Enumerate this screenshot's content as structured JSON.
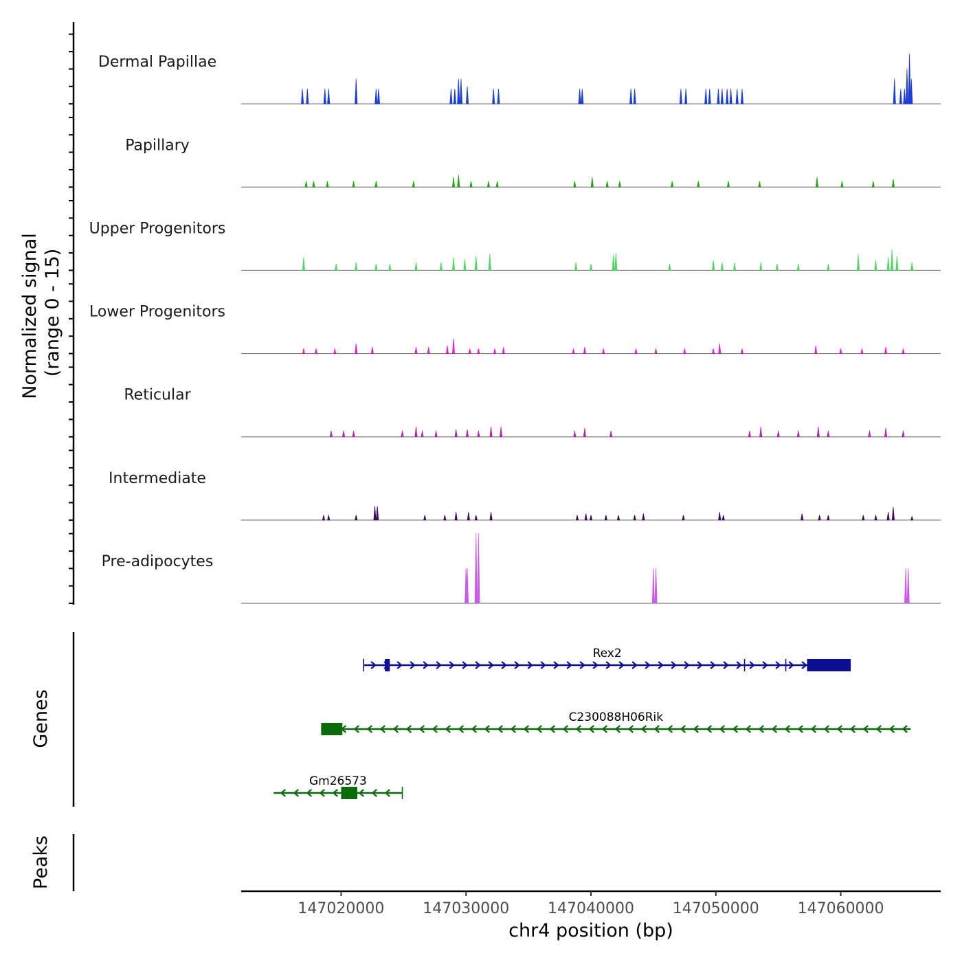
{
  "chart_data": {
    "type": "area",
    "title": "",
    "xlabel": "chr4 position (bp)",
    "ylabel_line1": "Normalized signal",
    "ylabel_line2": "(range 0 - 15)",
    "genes_label": "Genes",
    "peaks_label": "Peaks",
    "xlim": [
      147012000,
      147068000
    ],
    "ylim": [
      0,
      15
    ],
    "x_ticks": [
      147020000,
      147030000,
      147040000,
      147050000,
      147060000
    ],
    "x_tick_labels": [
      "147020000",
      "147030000",
      "147040000",
      "147050000",
      "147060000"
    ],
    "tracks": [
      {
        "name": "Dermal Papillae",
        "color": "#1d3fd6",
        "peaks": [
          [
            147016900,
            3
          ],
          [
            147017300,
            3
          ],
          [
            147018700,
            3
          ],
          [
            147019000,
            3
          ],
          [
            147021200,
            5
          ],
          [
            147022800,
            3
          ],
          [
            147023000,
            3
          ],
          [
            147028800,
            3
          ],
          [
            147029100,
            3
          ],
          [
            147029400,
            5
          ],
          [
            147029600,
            5
          ],
          [
            147030100,
            3.5
          ],
          [
            147032200,
            3
          ],
          [
            147032600,
            3
          ],
          [
            147039100,
            3
          ],
          [
            147039300,
            3
          ],
          [
            147043200,
            3
          ],
          [
            147043500,
            3
          ],
          [
            147047200,
            3
          ],
          [
            147047600,
            3
          ],
          [
            147049200,
            3
          ],
          [
            147049500,
            3
          ],
          [
            147050200,
            3
          ],
          [
            147050500,
            3
          ],
          [
            147050900,
            3
          ],
          [
            147051200,
            3
          ],
          [
            147051700,
            3
          ],
          [
            147052100,
            3
          ],
          [
            147064300,
            5
          ],
          [
            147064800,
            3
          ],
          [
            147065100,
            3
          ],
          [
            147065300,
            7
          ],
          [
            147065500,
            10
          ],
          [
            147065650,
            5
          ]
        ]
      },
      {
        "name": "Papillary",
        "color": "#22a80f",
        "peaks": [
          [
            147017200,
            1.2
          ],
          [
            147017800,
            1.2
          ],
          [
            147018900,
            1.2
          ],
          [
            147021000,
            1.2
          ],
          [
            147022800,
            1.2
          ],
          [
            147025800,
            1.2
          ],
          [
            147029000,
            2
          ],
          [
            147029400,
            2.4
          ],
          [
            147030400,
            1.2
          ],
          [
            147031800,
            1.2
          ],
          [
            147032500,
            1.2
          ],
          [
            147038700,
            1.2
          ],
          [
            147040100,
            2
          ],
          [
            147041300,
            1.2
          ],
          [
            147042300,
            1.2
          ],
          [
            147046500,
            1.2
          ],
          [
            147048600,
            1.2
          ],
          [
            147051000,
            1.2
          ],
          [
            147053500,
            1.2
          ],
          [
            147058100,
            2
          ],
          [
            147060100,
            1.2
          ],
          [
            147062600,
            1.2
          ],
          [
            147064200,
            1.6
          ]
        ]
      },
      {
        "name": "Upper Progenitors",
        "color": "#4dd95e",
        "peaks": [
          [
            147017000,
            2.6
          ],
          [
            147019600,
            1.3
          ],
          [
            147021200,
            1.6
          ],
          [
            147022800,
            1.3
          ],
          [
            147023900,
            1.3
          ],
          [
            147026000,
            1.6
          ],
          [
            147028000,
            1.6
          ],
          [
            147029000,
            2.6
          ],
          [
            147029900,
            2.2
          ],
          [
            147030800,
            2.8
          ],
          [
            147031900,
            3.3
          ],
          [
            147038800,
            1.6
          ],
          [
            147040000,
            1.3
          ],
          [
            147041800,
            3.2
          ],
          [
            147042000,
            3.5
          ],
          [
            147046300,
            1.3
          ],
          [
            147049800,
            2
          ],
          [
            147050500,
            1.6
          ],
          [
            147051500,
            1.6
          ],
          [
            147053600,
            1.6
          ],
          [
            147054900,
            1.3
          ],
          [
            147056600,
            1.3
          ],
          [
            147059000,
            1.3
          ],
          [
            147061400,
            3.2
          ],
          [
            147062800,
            2
          ],
          [
            147063800,
            2.6
          ],
          [
            147064100,
            4.2
          ],
          [
            147064500,
            2.8
          ],
          [
            147065700,
            1.6
          ]
        ]
      },
      {
        "name": "Lower Progenitors",
        "color": "#e51fd4",
        "peaks": [
          [
            147017000,
            1
          ],
          [
            147018000,
            1
          ],
          [
            147019500,
            1
          ],
          [
            147021200,
            2
          ],
          [
            147022500,
            1.3
          ],
          [
            147026000,
            1.3
          ],
          [
            147027000,
            1.3
          ],
          [
            147028500,
            1.6
          ],
          [
            147029000,
            3
          ],
          [
            147030300,
            1
          ],
          [
            147031000,
            1
          ],
          [
            147032300,
            1
          ],
          [
            147033000,
            1.3
          ],
          [
            147038600,
            1
          ],
          [
            147039500,
            1.3
          ],
          [
            147041000,
            1
          ],
          [
            147043600,
            1
          ],
          [
            147045200,
            1
          ],
          [
            147047500,
            1
          ],
          [
            147049800,
            1
          ],
          [
            147050300,
            2
          ],
          [
            147052100,
            1
          ],
          [
            147058000,
            1.6
          ],
          [
            147060000,
            1
          ],
          [
            147061700,
            1
          ],
          [
            147063600,
            1.3
          ],
          [
            147065000,
            1
          ]
        ]
      },
      {
        "name": "Reticular",
        "color": "#ae29b5",
        "peaks": [
          [
            147019200,
            1.2
          ],
          [
            147020200,
            1.2
          ],
          [
            147021000,
            1.2
          ],
          [
            147024900,
            1.2
          ],
          [
            147026000,
            2
          ],
          [
            147026500,
            1.2
          ],
          [
            147027600,
            1.2
          ],
          [
            147029200,
            1.5
          ],
          [
            147030100,
            1.5
          ],
          [
            147031000,
            1.2
          ],
          [
            147032000,
            2
          ],
          [
            147032800,
            2
          ],
          [
            147038700,
            1.2
          ],
          [
            147039500,
            1.8
          ],
          [
            147041600,
            1.2
          ],
          [
            147052700,
            1.2
          ],
          [
            147053600,
            2
          ],
          [
            147055000,
            1.2
          ],
          [
            147056600,
            1.2
          ],
          [
            147058200,
            2
          ],
          [
            147059000,
            1.2
          ],
          [
            147062300,
            1.2
          ],
          [
            147063600,
            1.8
          ],
          [
            147065000,
            1.2
          ]
        ]
      },
      {
        "name": "Intermediate",
        "color": "#3d0a5e",
        "peaks": [
          [
            147018600,
            1
          ],
          [
            147019000,
            1
          ],
          [
            147021200,
            1
          ],
          [
            147022700,
            2.8
          ],
          [
            147022900,
            2.8
          ],
          [
            147026700,
            1
          ],
          [
            147028300,
            1
          ],
          [
            147029200,
            1.6
          ],
          [
            147030200,
            1.6
          ],
          [
            147030800,
            1
          ],
          [
            147032000,
            1.6
          ],
          [
            147038900,
            1
          ],
          [
            147039600,
            1.3
          ],
          [
            147040000,
            1
          ],
          [
            147041200,
            1
          ],
          [
            147042200,
            1
          ],
          [
            147043500,
            1
          ],
          [
            147044200,
            1.3
          ],
          [
            147047400,
            1
          ],
          [
            147050300,
            1.6
          ],
          [
            147050600,
            1
          ],
          [
            147056900,
            1.3
          ],
          [
            147058300,
            1
          ],
          [
            147059000,
            1
          ],
          [
            147061800,
            1
          ],
          [
            147062800,
            1
          ],
          [
            147063800,
            1.6
          ],
          [
            147064200,
            2.6
          ],
          [
            147065700,
            0.7
          ]
        ]
      },
      {
        "name": "Pre-adipocytes",
        "color": "#c85de8",
        "peaks": [
          [
            147030000,
            7
          ],
          [
            147030100,
            7
          ],
          [
            147030800,
            14
          ],
          [
            147031000,
            14
          ],
          [
            147045000,
            7
          ],
          [
            147045200,
            7
          ],
          [
            147065200,
            7
          ],
          [
            147065400,
            7
          ]
        ]
      }
    ],
    "genes": [
      {
        "name": "Rex2",
        "strand": "+",
        "color": "#0b0f96",
        "start": 147021800,
        "end": 147060800,
        "exons": [
          [
            147023500,
            147023900
          ],
          [
            147057300,
            147060800
          ]
        ],
        "marks": [
          147021800,
          147052300,
          147055600
        ]
      },
      {
        "name": "C230088H06Rik",
        "strand": "-",
        "color": "#0a6b0a",
        "start": 147018400,
        "end": 147065600,
        "exons": [
          [
            147018400,
            147020100
          ]
        ],
        "marks": []
      },
      {
        "name": "Gm26573",
        "strand": "-",
        "color": "#0a6b0a",
        "start": 147014600,
        "end": 147024900,
        "exons": [
          [
            147020000,
            147021300
          ]
        ],
        "marks": [
          147024900
        ]
      }
    ]
  }
}
